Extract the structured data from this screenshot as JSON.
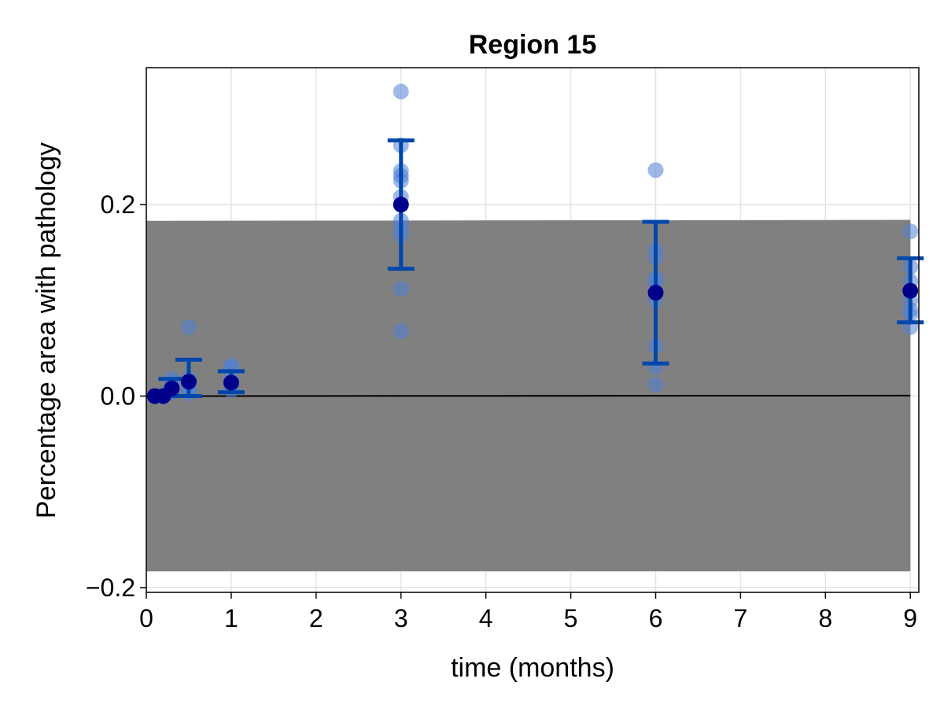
{
  "chart_data": {
    "type": "scatter",
    "title": "Region 15",
    "xlabel": "time (months)",
    "ylabel": "Percentage area with pathology",
    "xlim": [
      0,
      9.1
    ],
    "ylim": [
      -0.205,
      0.343
    ],
    "xticks": [
      0,
      1,
      2,
      3,
      4,
      5,
      6,
      7,
      8,
      9
    ],
    "xtick_labels": [
      "0",
      "1",
      "2",
      "3",
      "4",
      "5",
      "6",
      "7",
      "8",
      "9"
    ],
    "yticks": [
      -0.2,
      0.0,
      0.2
    ],
    "ytick_labels": [
      "−0.2",
      "0.0",
      "0.2"
    ],
    "grid": true,
    "legend": "none",
    "colors": {
      "band": "#808080",
      "model_line": "#000000",
      "observations": "#4f7fd6",
      "mean": "#00008b",
      "error_bars": "#0047ab"
    },
    "band": {
      "x": [
        0,
        9
      ],
      "lower": [
        -0.183,
        -0.183
      ],
      "upper": [
        0.183,
        0.184
      ]
    },
    "model_line": {
      "x": [
        0,
        9
      ],
      "y": [
        0.0,
        0.0005
      ]
    },
    "observations": [
      {
        "x": 0.1,
        "y": [
          0.0,
          0.0,
          0.0
        ]
      },
      {
        "x": 0.2,
        "y": [
          0.0,
          0.001,
          0.0
        ]
      },
      {
        "x": 0.3,
        "y": [
          0.004,
          0.007,
          0.01,
          0.015,
          0.018,
          0.008
        ]
      },
      {
        "x": 0.5,
        "y": [
          0.072,
          0.003,
          0.006,
          0.012,
          0.015,
          0.018,
          0.013
        ]
      },
      {
        "x": 1.0,
        "y": [
          0.006,
          0.01,
          0.014,
          0.018,
          0.03,
          0.032
        ]
      },
      {
        "x": 3.0,
        "y": [
          0.318,
          0.262,
          0.235,
          0.23,
          0.225,
          0.208,
          0.2,
          0.183,
          0.175,
          0.168,
          0.112,
          0.068
        ]
      },
      {
        "x": 6.0,
        "y": [
          0.236,
          0.153,
          0.145,
          0.123,
          0.118,
          0.1,
          0.052,
          0.03,
          0.012
        ]
      },
      {
        "x": 9.0,
        "y": [
          0.172,
          0.135,
          0.12,
          0.1,
          0.09,
          0.085,
          0.072
        ]
      }
    ],
    "means": {
      "x": [
        0.1,
        0.2,
        0.3,
        0.5,
        1.0,
        3.0,
        6.0,
        9.0
      ],
      "y": [
        0.0,
        0.0,
        0.008,
        0.015,
        0.014,
        0.2,
        0.108,
        0.11
      ],
      "err_low": [
        0.0,
        0.0,
        0.0,
        0.0,
        0.004,
        0.133,
        0.034,
        0.077
      ],
      "err_high": [
        0.0,
        0.0,
        0.018,
        0.038,
        0.026,
        0.267,
        0.182,
        0.144
      ]
    }
  }
}
